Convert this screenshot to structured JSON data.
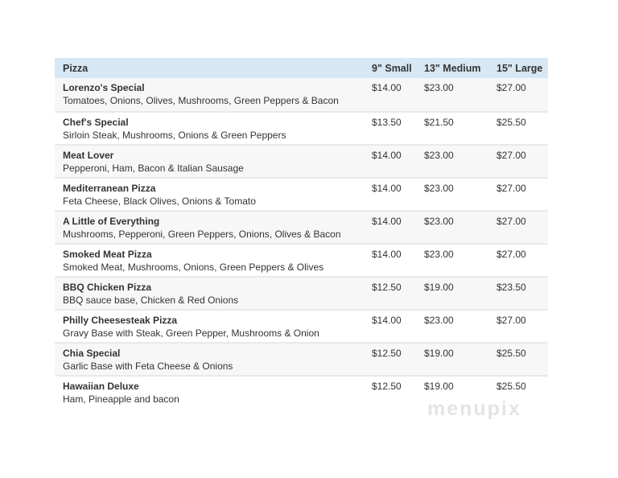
{
  "menu": {
    "columns": [
      "Pizza",
      "9\" Small",
      "13\" Medium",
      "15\" Large"
    ],
    "rows": [
      {
        "name": "Lorenzo's Special",
        "description": "Tomatoes, Onions, Olives, Mushrooms, Green Peppers & Bacon",
        "small": "$14.00",
        "medium": "$23.00",
        "large": "$27.00"
      },
      {
        "name": "Chef's Special",
        "description": "Sirloin Steak, Mushrooms, Onions & Green Peppers",
        "small": "$13.50",
        "medium": "$21.50",
        "large": "$25.50"
      },
      {
        "name": "Meat Lover",
        "description": "Pepperoni, Ham, Bacon & Italian Sausage",
        "small": "$14.00",
        "medium": "$23.00",
        "large": "$27.00"
      },
      {
        "name": "Mediterranean Pizza",
        "description": "Feta Cheese, Black Olives, Onions & Tomato",
        "small": "$14.00",
        "medium": "$23.00",
        "large": "$27.00"
      },
      {
        "name": "A Little of Everything",
        "description": "Mushrooms, Pepperoni, Green Peppers, Onions, Olives & Bacon",
        "small": "$14.00",
        "medium": "$23.00",
        "large": "$27.00"
      },
      {
        "name": "Smoked Meat Pizza",
        "description": "Smoked Meat, Mushrooms, Onions, Green Peppers & Olives",
        "small": "$14.00",
        "medium": "$23.00",
        "large": "$27.00"
      },
      {
        "name": "BBQ Chicken Pizza",
        "description": "BBQ sauce base, Chicken & Red Onions",
        "small": "$12.50",
        "medium": "$19.00",
        "large": "$23.50"
      },
      {
        "name": "Philly Cheesesteak Pizza",
        "description": "Gravy Base with Steak, Green Pepper, Mushrooms & Onion",
        "small": "$14.00",
        "medium": "$23.00",
        "large": "$27.00"
      },
      {
        "name": "Chia Special",
        "description": "Garlic Base with Feta Cheese & Onions",
        "small": "$12.50",
        "medium": "$19.00",
        "large": "$25.50"
      },
      {
        "name": "Hawaiian Deluxe",
        "description": "Ham, Pineapple and bacon",
        "small": "$12.50",
        "medium": "$19.00",
        "large": "$25.50"
      }
    ]
  },
  "watermark": {
    "text": "menupix"
  },
  "colors": {
    "header_bg": "#d7e8f4",
    "row_alt_bg": "#f7f7f7",
    "separator": "#e9e9e9",
    "text": "#333333",
    "watermark": "#e4e4e4"
  }
}
